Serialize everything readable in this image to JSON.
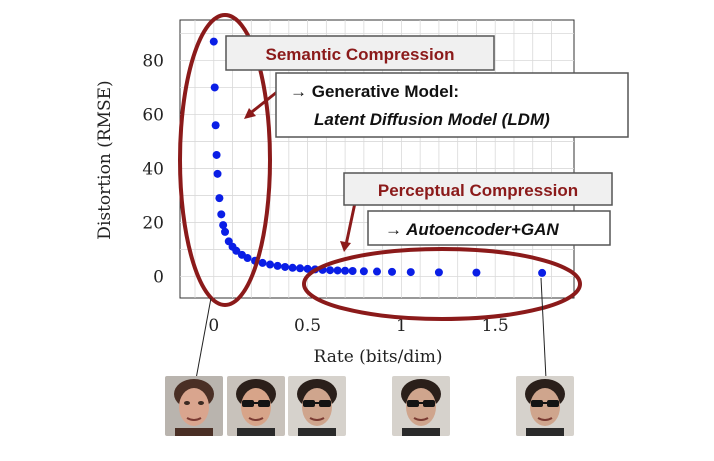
{
  "chart_data": {
    "type": "scatter",
    "xlabel": "Rate (bits/dim)",
    "ylabel": "Distortion (RMSE)",
    "xlim": [
      -0.18,
      1.92
    ],
    "ylim": [
      -8,
      95
    ],
    "xticks": [
      0,
      0.5,
      1,
      1.5
    ],
    "xtick_labels": [
      "0",
      "0.5",
      "1",
      "1.5"
    ],
    "yticks": [
      0,
      20,
      40,
      60,
      80
    ],
    "ytick_labels": [
      "0",
      "20",
      "40",
      "60",
      "80"
    ],
    "grid": true,
    "marker_color": "#0a1ee6",
    "x": [
      0.0,
      0.005,
      0.01,
      0.015,
      0.02,
      0.03,
      0.04,
      0.05,
      0.06,
      0.08,
      0.1,
      0.12,
      0.15,
      0.18,
      0.22,
      0.26,
      0.3,
      0.34,
      0.38,
      0.42,
      0.46,
      0.5,
      0.54,
      0.58,
      0.62,
      0.66,
      0.7,
      0.74,
      0.8,
      0.87,
      0.95,
      1.05,
      1.2,
      1.4,
      1.75
    ],
    "y": [
      87,
      70,
      56,
      45,
      38,
      29,
      23,
      19,
      16.5,
      13,
      11,
      9.5,
      8,
      6.8,
      5.8,
      5.0,
      4.4,
      3.9,
      3.5,
      3.2,
      3.0,
      2.8,
      2.6,
      2.4,
      2.3,
      2.2,
      2.1,
      2.0,
      1.9,
      1.8,
      1.7,
      1.6,
      1.5,
      1.4,
      1.3
    ]
  },
  "annotations": {
    "semantic_title": "Semantic Compression",
    "semantic_line1": "→ Generative Model:",
    "semantic_line2": "Latent Diffusion Model (LDM)",
    "perceptual_title": "Perceptual Compression",
    "perceptual_line": "→ Autoencoder+GAN"
  },
  "colors": {
    "annotation_red": "#8b1a1a",
    "box_fill": "#f0f0f0",
    "grid": "#d9d9d9"
  },
  "thumbnails": [
    {
      "name": "face-woman-thumbnail",
      "skin": "#d9a58e",
      "hair": "#4a2f25",
      "bg": "#b9b4ae"
    },
    {
      "name": "face-man-sunglasses-thumbnail-1",
      "skin": "#d7a489",
      "hair": "#2b1f1a",
      "bg": "#c8c2bb"
    },
    {
      "name": "face-man-sunglasses-thumbnail-2",
      "skin": "#cfa58d",
      "hair": "#2a1f1a",
      "bg": "#d6d2cc"
    },
    {
      "name": "face-man-sunglasses-thumbnail-3",
      "skin": "#cfa58d",
      "hair": "#2a1f1a",
      "bg": "#d6d2cc"
    },
    {
      "name": "face-man-sunglasses-thumbnail-4",
      "skin": "#cfa58d",
      "hair": "#2a1f1a",
      "bg": "#d6d2cc"
    }
  ]
}
